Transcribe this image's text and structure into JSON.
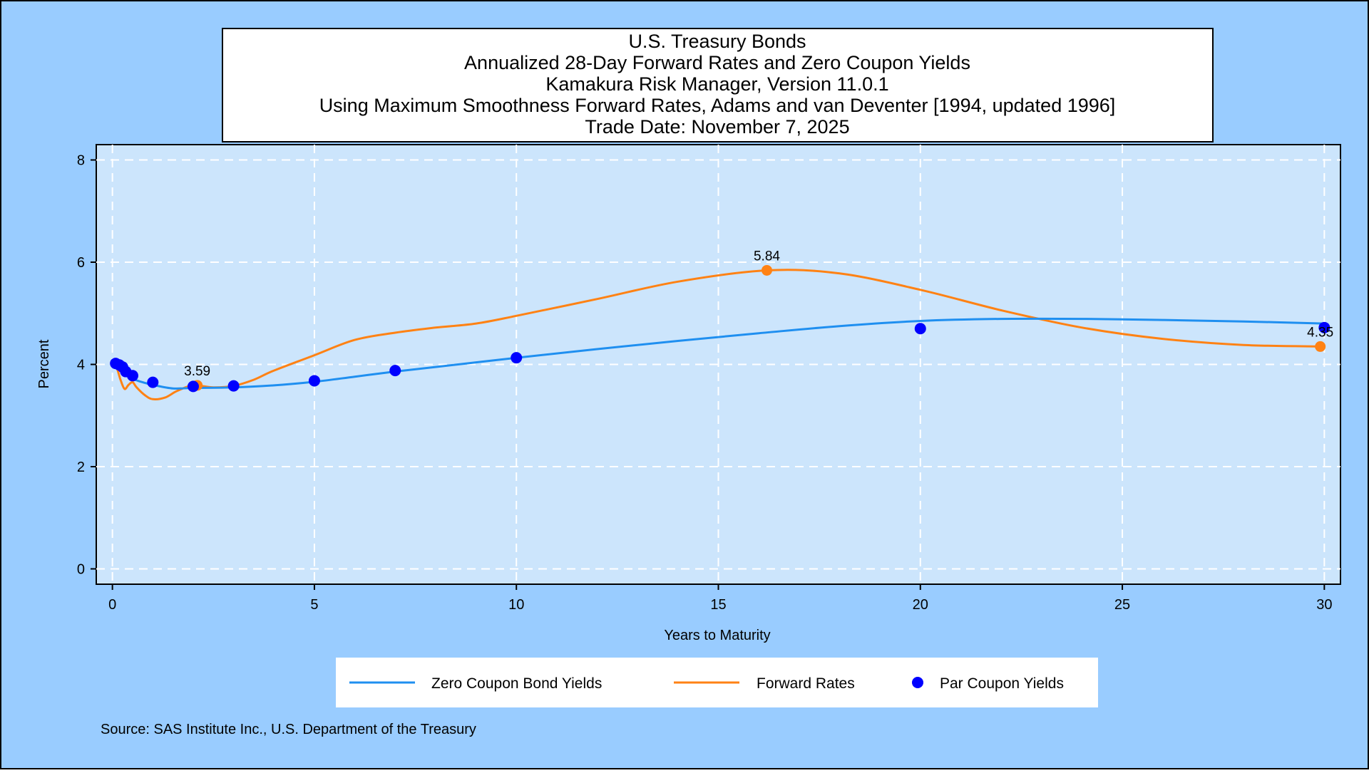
{
  "colors": {
    "outer_bg": "#99ccff",
    "plot_bg": "#cce5fc",
    "zero_line": "#1f8ff0",
    "forward_line": "#ff8214",
    "par_marker": "#0000ff",
    "grid": "#ffffff"
  },
  "chart_data": {
    "type": "line",
    "title_lines": [
      "U.S. Treasury Bonds",
      "Annualized 28-Day Forward Rates and Zero Coupon Yields",
      "Kamakura Risk Manager, Version 11.0.1",
      "Using Maximum Smoothness Forward Rates, Adams and van Deventer [1994, updated 1996]",
      "Trade Date: November 7, 2025"
    ],
    "xlabel": "Years to Maturity",
    "ylabel": "Percent",
    "xlim": [
      -0.4,
      30.4
    ],
    "ylim": [
      -0.3,
      8.3
    ],
    "xticks": [
      0,
      5,
      10,
      15,
      20,
      25,
      30
    ],
    "yticks": [
      0,
      2,
      4,
      6,
      8
    ],
    "grid": true,
    "legend_position": "bottom",
    "source": "Source: SAS Institute Inc., U.S. Department of the Treasury",
    "series": [
      {
        "name": "Zero Coupon Bond Yields",
        "kind": "line",
        "x": [
          0.0,
          0.25,
          0.5,
          0.75,
          1.0,
          1.5,
          2.0,
          3.0,
          4.0,
          5.0,
          6.0,
          7.0,
          8.0,
          10.0,
          12.0,
          14.0,
          16.0,
          18.0,
          20.0,
          22.0,
          24.0,
          26.0,
          28.0,
          30.0
        ],
        "y": [
          4.0,
          3.85,
          3.72,
          3.65,
          3.6,
          3.53,
          3.54,
          3.55,
          3.59,
          3.66,
          3.76,
          3.86,
          3.95,
          4.13,
          4.3,
          4.46,
          4.61,
          4.75,
          4.85,
          4.89,
          4.89,
          4.87,
          4.84,
          4.8
        ]
      },
      {
        "name": "Forward Rates",
        "kind": "line",
        "x": [
          0.0,
          0.1,
          0.2,
          0.3,
          0.4,
          0.5,
          0.6,
          0.8,
          1.0,
          1.3,
          1.6,
          2.0,
          2.5,
          3.0,
          3.5,
          4.0,
          5.0,
          6.0,
          7.0,
          8.0,
          9.0,
          10.0,
          12.0,
          14.0,
          16.2,
          18.0,
          20.0,
          22.0,
          24.0,
          26.0,
          28.0,
          30.0
        ],
        "y": [
          4.0,
          3.95,
          3.7,
          3.52,
          3.6,
          3.65,
          3.55,
          3.4,
          3.32,
          3.35,
          3.48,
          3.59,
          3.55,
          3.58,
          3.7,
          3.88,
          4.18,
          4.48,
          4.62,
          4.72,
          4.8,
          4.95,
          5.28,
          5.62,
          5.84,
          5.78,
          5.46,
          5.06,
          4.72,
          4.5,
          4.38,
          4.35
        ]
      },
      {
        "name": "Par Coupon Yields",
        "kind": "scatter",
        "x": [
          0.08,
          0.17,
          0.25,
          0.33,
          0.5,
          1.0,
          2.0,
          3.0,
          5.0,
          7.0,
          10.0,
          20.0,
          30.0
        ],
        "y": [
          4.02,
          3.99,
          3.95,
          3.86,
          3.78,
          3.65,
          3.57,
          3.58,
          3.68,
          3.88,
          4.13,
          4.7,
          4.72
        ]
      }
    ],
    "annotations": [
      {
        "label": "3.59",
        "x": 2.1,
        "y": 3.59,
        "series": "Forward Rates"
      },
      {
        "label": "5.84",
        "x": 16.2,
        "y": 5.84,
        "series": "Forward Rates"
      },
      {
        "label": "4.35",
        "x": 29.9,
        "y": 4.35,
        "series": "Forward Rates"
      }
    ]
  }
}
